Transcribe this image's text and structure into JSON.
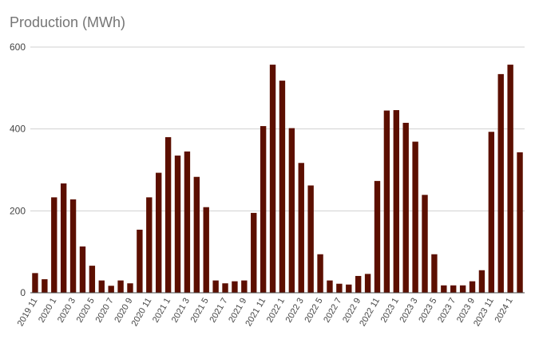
{
  "chart_data": {
    "type": "bar",
    "title": "Production (MWh)",
    "xlabel": "",
    "ylabel": "",
    "ylim": [
      0,
      600
    ],
    "yticks": [
      0,
      200,
      400,
      600
    ],
    "bar_color": "#5c0f00",
    "grid": true,
    "categories": [
      "2019 11",
      "2019 12",
      "2020 1",
      "2020 2",
      "2020 3",
      "2020 4",
      "2020 5",
      "2020 6",
      "2020 7",
      "2020 8",
      "2020 9",
      "2020 10",
      "2020 11",
      "2020 12",
      "2021 1",
      "2021 2",
      "2021 3",
      "2021 4",
      "2021 5",
      "2021 6",
      "2021 7",
      "2021 8",
      "2021 9",
      "2021 10",
      "2021 11",
      "2021 12",
      "2022 1",
      "2022 2",
      "2022 3",
      "2022 4",
      "2022 5",
      "2022 6",
      "2022 7",
      "2022 8",
      "2022 9",
      "2022 10",
      "2022 11",
      "2022 12",
      "2023 1",
      "2023 2",
      "2023 3",
      "2023 4",
      "2023 5",
      "2023 6",
      "2023 7",
      "2023 8",
      "2023 9",
      "2023 10",
      "2023 11",
      "2023 12",
      "2024 1",
      "2024 2"
    ],
    "shown_tick_labels": [
      "2019 11",
      "2020 1",
      "2020 3",
      "2020 5",
      "2020 7",
      "2020 9",
      "2020 11",
      "2021 1",
      "2021 3",
      "2021 5",
      "2021 7",
      "2021 9",
      "2021 11",
      "2022 1",
      "2022 3",
      "2022 5",
      "2022 7",
      "2022 9",
      "2022 11",
      "2023 1",
      "2023 3",
      "2023 5",
      "2023 7",
      "2023 9",
      "2023 11",
      "2024 1"
    ],
    "values": [
      48,
      33,
      233,
      267,
      228,
      113,
      66,
      30,
      17,
      30,
      23,
      154,
      233,
      293,
      380,
      335,
      345,
      283,
      209,
      30,
      23,
      28,
      30,
      195,
      407,
      557,
      518,
      402,
      317,
      262,
      94,
      30,
      22,
      20,
      41,
      46,
      273,
      445,
      446,
      415,
      369,
      239,
      94,
      18,
      18,
      18,
      28,
      55,
      393,
      534,
      557,
      343
    ]
  }
}
